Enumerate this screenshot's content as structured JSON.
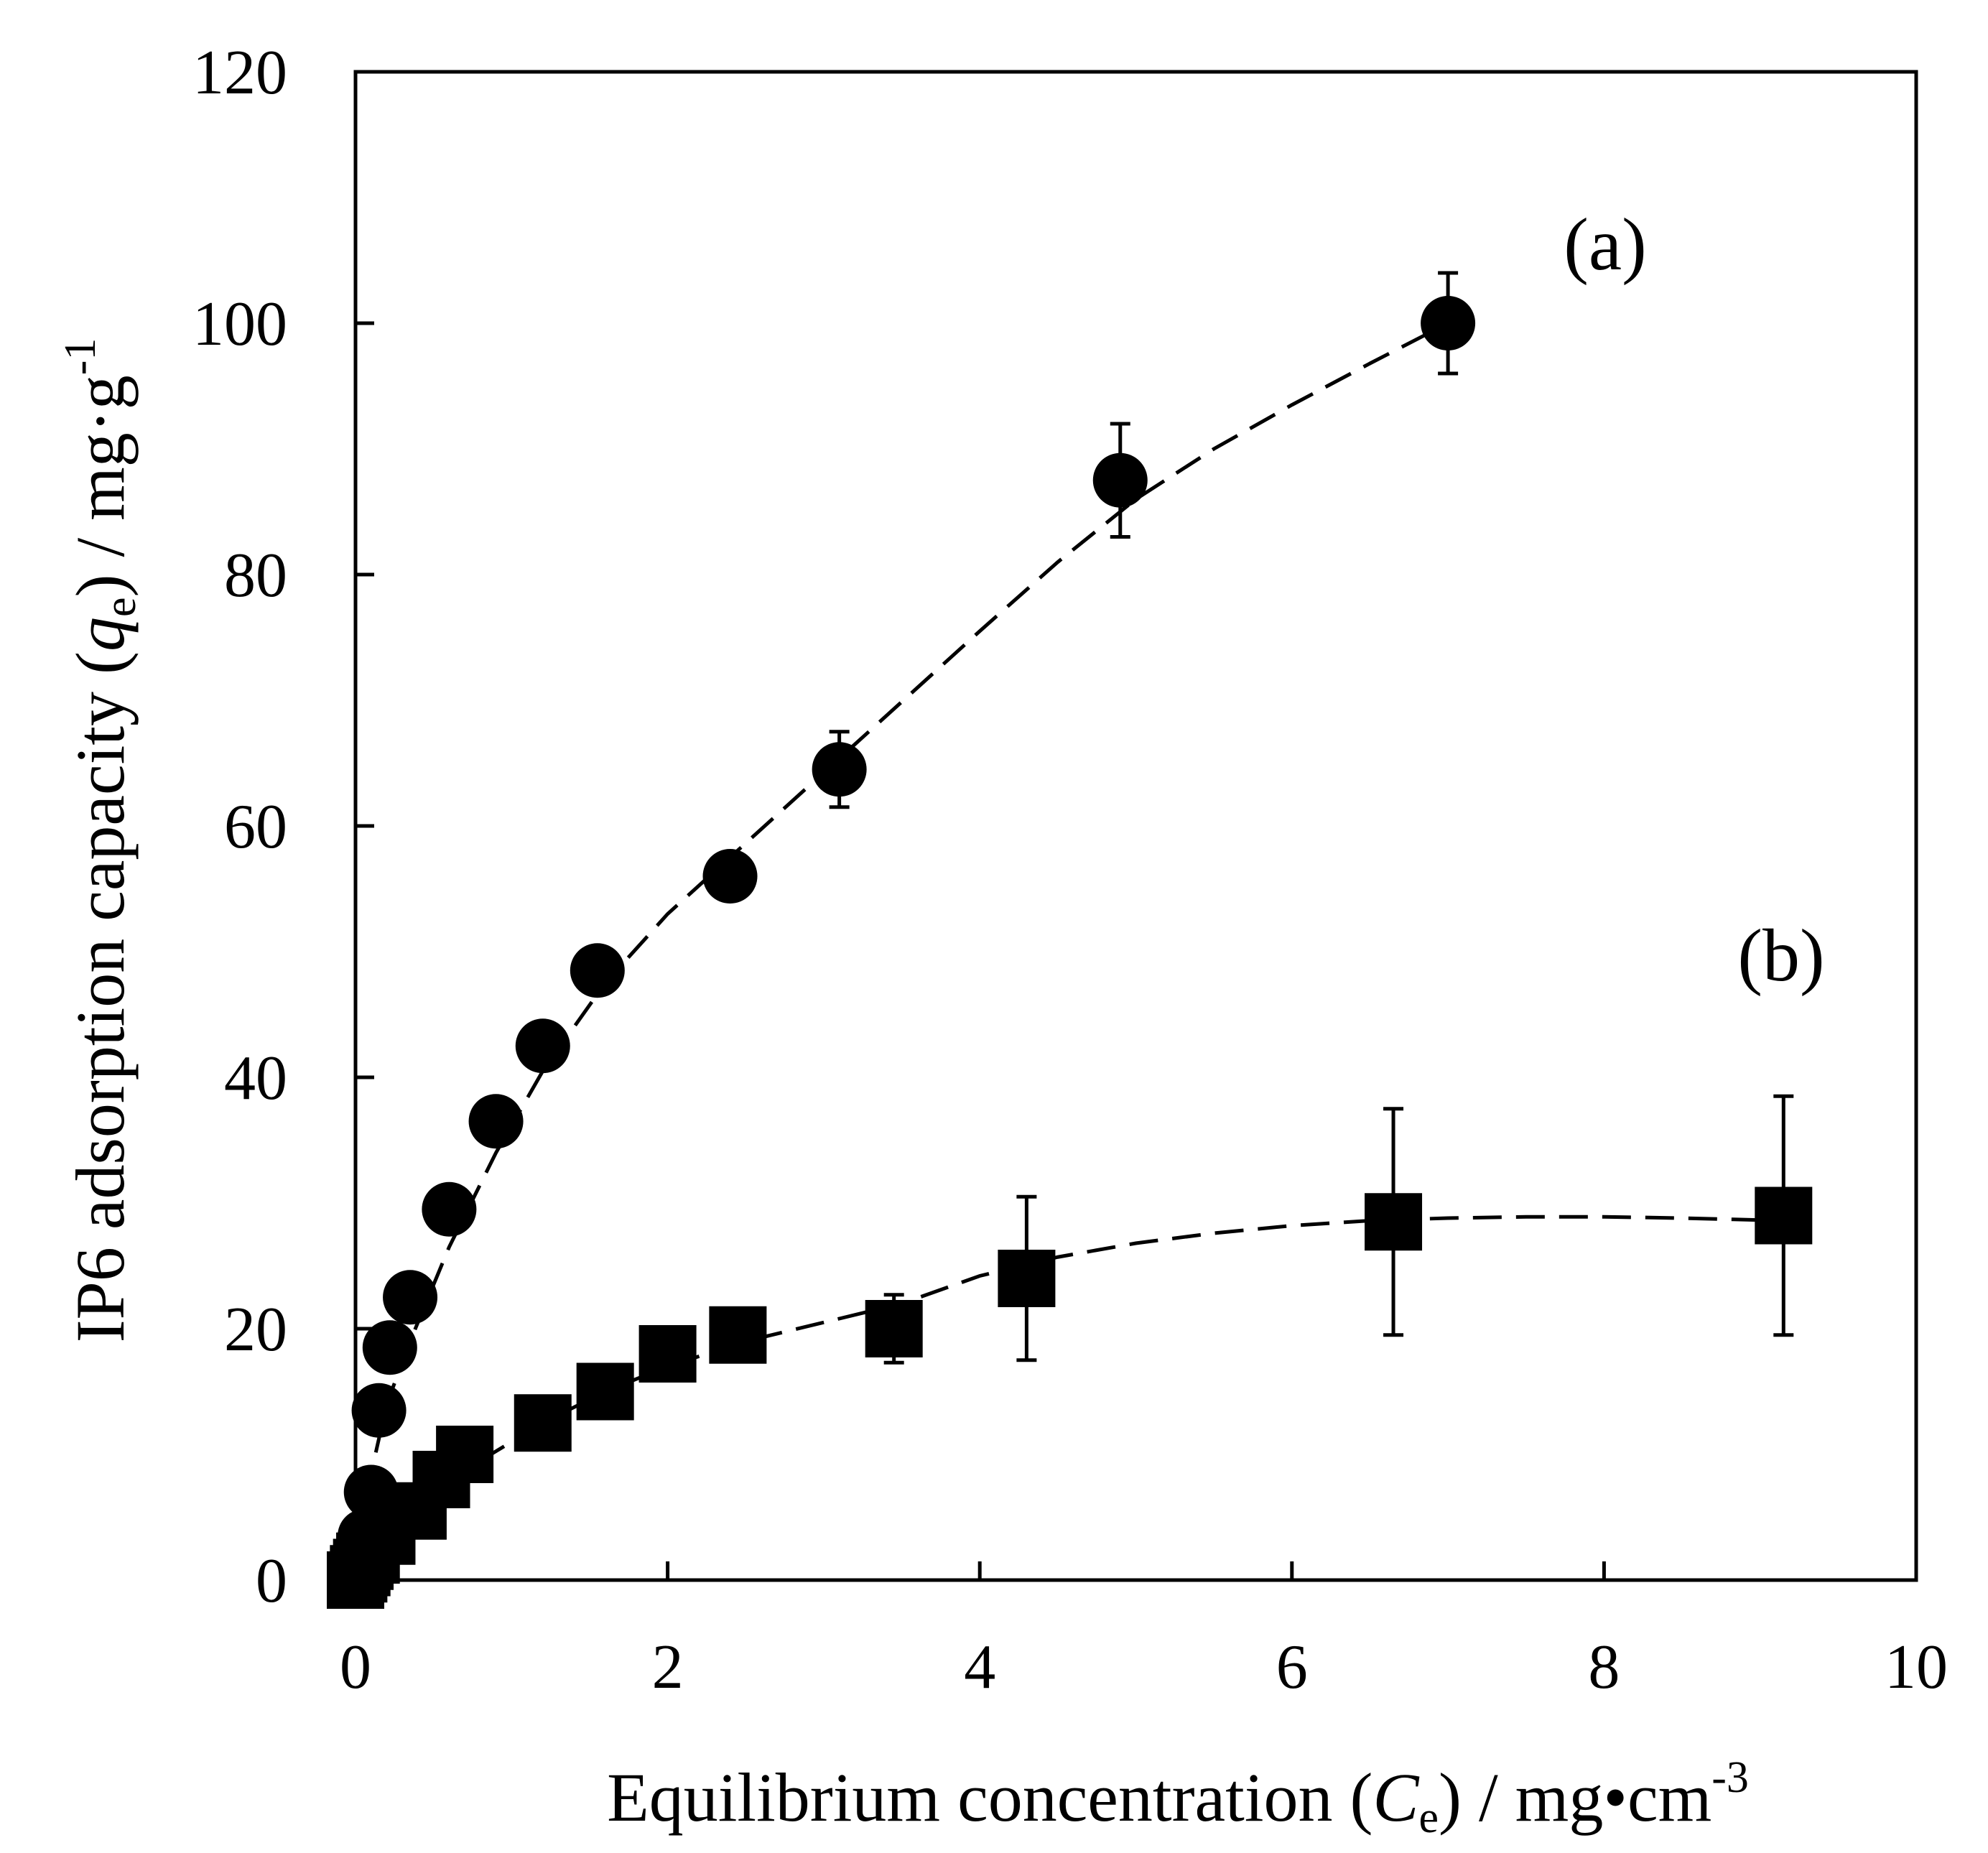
{
  "chart_data": {
    "type": "scatter",
    "title": "",
    "xlabel": {
      "main": "Equilibrium concentration (",
      "var": "C",
      "sub": "e",
      "unit": ") / mg•cm",
      "sup": "-3"
    },
    "ylabel": {
      "main": "IP6 adsorption capacity (",
      "var": "q",
      "sub": "e",
      "unit": ") / mg·g",
      "sup": "-1"
    },
    "xlim": [
      0,
      10
    ],
    "ylim": [
      0,
      120
    ],
    "x_ticks": [
      0,
      2,
      4,
      6,
      8,
      10
    ],
    "y_ticks": [
      0,
      20,
      40,
      60,
      80,
      100,
      120
    ],
    "x_tick_labels": [
      "0",
      "2",
      "4",
      "6",
      "8",
      "10"
    ],
    "y_tick_labels": [
      "0",
      "20",
      "40",
      "60",
      "80",
      "100",
      "120"
    ],
    "grid": false,
    "series": [
      {
        "name": "(a)",
        "label": "(a)",
        "marker": "circle",
        "color": "#000000",
        "x": [
          0.0,
          0.02,
          0.04,
          0.06,
          0.1,
          0.15,
          0.22,
          0.35,
          0.6,
          0.9,
          1.2,
          1.55,
          2.4,
          3.1,
          4.9,
          7.0
        ],
        "y": [
          0.5,
          1.5,
          2.5,
          3.5,
          7.0,
          13.5,
          18.5,
          22.5,
          29.5,
          36.5,
          42.5,
          48.5,
          56.0,
          64.5,
          87.5,
          100.0
        ],
        "error": [
          0,
          0,
          0,
          0,
          0,
          0,
          0,
          0,
          0,
          0,
          0,
          0,
          0,
          3.0,
          4.5,
          4.0
        ],
        "fit_x": [
          0.0,
          0.1,
          0.2,
          0.35,
          0.6,
          0.9,
          1.2,
          1.6,
          2.0,
          2.4,
          2.8,
          3.2,
          3.6,
          4.0,
          4.5,
          5.0,
          5.5,
          6.0,
          6.5,
          7.0
        ],
        "fit_y": [
          0.0,
          8.5,
          14.0,
          19.0,
          26.5,
          34.0,
          40.5,
          47.5,
          53.0,
          57.5,
          62.0,
          66.5,
          71.0,
          75.5,
          81.0,
          86.0,
          90.0,
          93.5,
          96.8,
          100.0
        ]
      },
      {
        "name": "(b)",
        "label": "(b)",
        "marker": "square",
        "color": "#000000",
        "x": [
          0.0,
          0.02,
          0.04,
          0.06,
          0.1,
          0.2,
          0.4,
          0.55,
          0.7,
          1.2,
          1.6,
          2.0,
          2.45,
          3.45,
          4.3,
          6.65,
          9.15
        ],
        "y": [
          0.0,
          0.5,
          1.0,
          1.5,
          2.0,
          3.5,
          5.5,
          8.0,
          10.0,
          12.5,
          15.0,
          18.0,
          19.5,
          20.0,
          24.0,
          28.5,
          29.0
        ],
        "error": [
          0,
          0,
          0,
          0,
          0,
          0,
          0,
          0,
          0,
          0,
          0,
          0,
          0,
          2.7,
          6.5,
          9.0,
          9.5
        ],
        "fit_x": [
          0.0,
          0.2,
          0.5,
          0.8,
          1.2,
          1.6,
          2.0,
          2.5,
          3.0,
          3.5,
          4.0,
          4.5,
          5.0,
          5.5,
          6.0,
          6.5,
          7.0,
          7.5,
          8.0,
          8.5,
          9.15
        ],
        "fit_y": [
          0.0,
          3.0,
          6.5,
          9.5,
          12.5,
          15.0,
          17.0,
          19.0,
          20.5,
          22.0,
          24.2,
          25.7,
          26.8,
          27.6,
          28.2,
          28.6,
          28.8,
          28.9,
          28.9,
          28.8,
          28.6
        ]
      }
    ]
  }
}
